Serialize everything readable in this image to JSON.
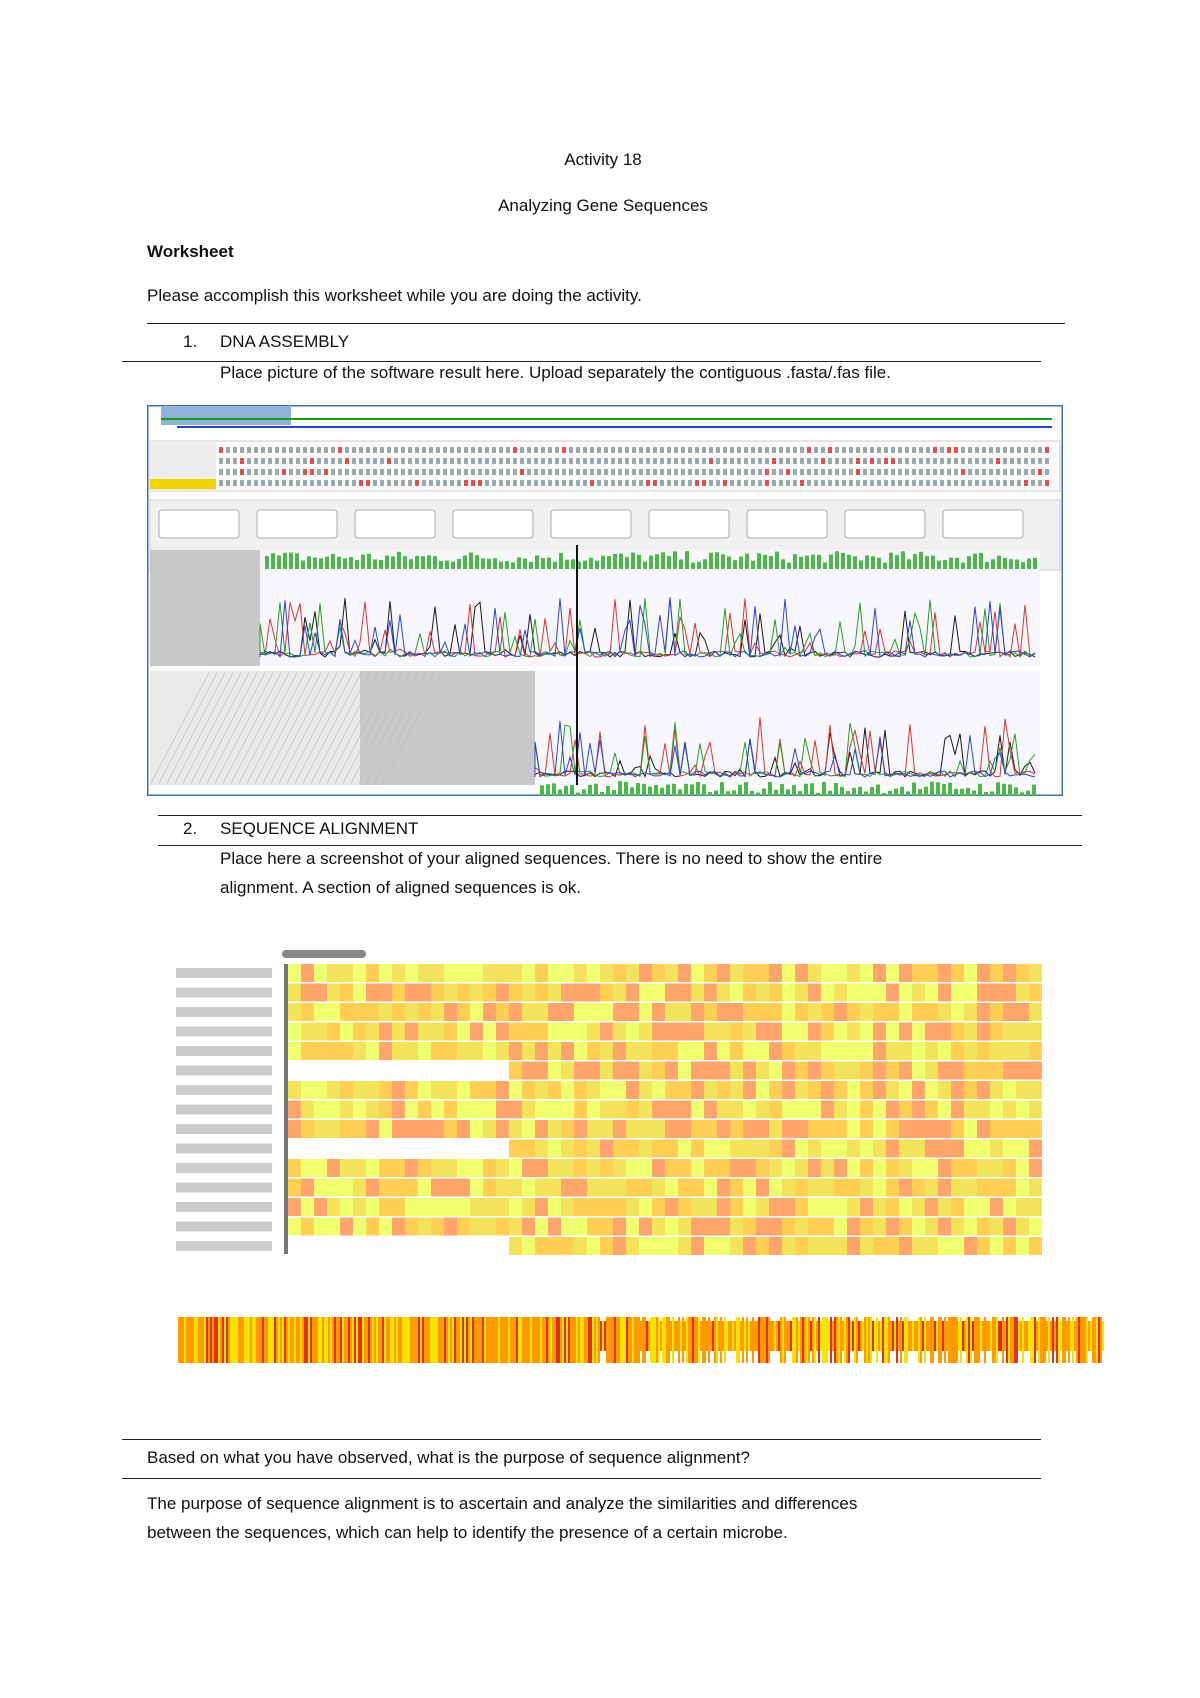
{
  "header": {
    "title": "Activity 18",
    "subtitle": "Analyzing Gene Sequences",
    "heading": "Worksheet",
    "instruction": "Please accomplish this worksheet while you are doing the activity."
  },
  "sections": [
    {
      "number": "1.",
      "title": "DNA ASSEMBLY",
      "instruction": "Place picture of the software result here. Upload separately the contiguous .fasta/.fas file."
    },
    {
      "number": "2.",
      "title": "SEQUENCE ALIGNMENT",
      "instruction_line1": "Place here a screenshot of your aligned sequences. There is no need to show the entire",
      "instruction_line2": "alignment. A section of aligned sequences is ok."
    }
  ],
  "question": {
    "text": "Based on what you have observed, what is the purpose of sequence alignment?"
  },
  "answer": {
    "line1": "The purpose of sequence alignment is to ascertain and analyze the similarities and differences",
    "line2": "between the sequences, which can help to identify the presence of a certain microbe."
  }
}
